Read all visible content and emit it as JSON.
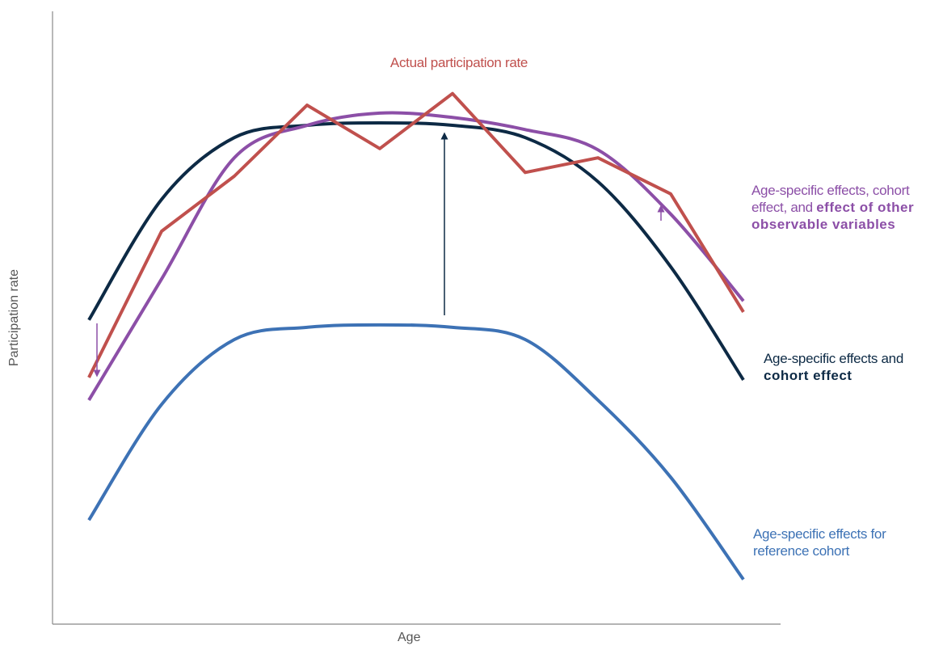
{
  "chart_data": {
    "type": "line",
    "xlabel": "Age",
    "ylabel": "Participation rate",
    "xlim": [
      0,
      100
    ],
    "ylim": [
      0,
      100
    ],
    "x": [
      5,
      15,
      25,
      35,
      45,
      55,
      65,
      75,
      85,
      95
    ],
    "series": [
      {
        "name": [
          "Age-specific effects for reference cohort"
        ],
        "name_bold": [
          false
        ],
        "color": "#3d72b5",
        "smooth": true,
        "values": [
          17.0,
          35.9,
          46.5,
          48.5,
          48.9,
          48.5,
          46.5,
          36.6,
          24.0,
          7.3
        ]
      },
      {
        "name": [
          "Age-specific effects and ",
          "cohort effect"
        ],
        "name_bold": [
          false,
          true
        ],
        "color": "#0d2a45",
        "smooth": true,
        "values": [
          49.7,
          69.4,
          79.5,
          81.5,
          81.9,
          81.5,
          79.5,
          72.3,
          58.4,
          39.9
        ]
      },
      {
        "name": [
          "Age-specific effects, cohort effect, and ",
          "effect of other observable variables"
        ],
        "name_bold": [
          false,
          true
        ],
        "color": "#8c4fa7",
        "smooth": true,
        "values": [
          36.6,
          56.4,
          76.2,
          81.5,
          83.5,
          82.8,
          80.8,
          77.5,
          67.0,
          52.8
        ]
      },
      {
        "name": [
          "Actual participation rate"
        ],
        "name_bold": [
          false
        ],
        "color": "#c0504d",
        "smooth": false,
        "values": [
          40.3,
          64.2,
          73.2,
          84.8,
          77.7,
          86.7,
          73.8,
          76.2,
          70.3,
          51.0
        ]
      }
    ]
  }
}
